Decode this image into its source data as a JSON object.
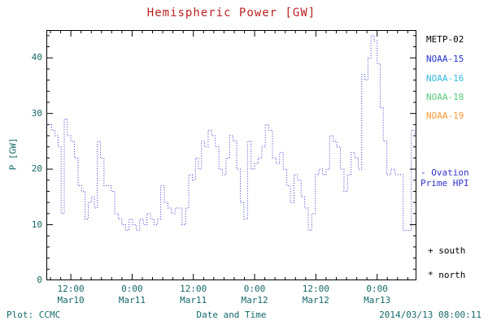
{
  "colors": {
    "title": "#bb2222",
    "axis_text": "#156868",
    "axis_line": "#000000",
    "hpi_line": "#3333cc",
    "metp02": "#000000",
    "noaa15": "#2233cc",
    "noaa16": "#33bbdd",
    "noaa18": "#55cc77",
    "noaa19": "#ff9933"
  },
  "title": "Hemispheric Power [GW]",
  "ylabel": "P [GW]",
  "xlabel": "Date and Time",
  "footer": {
    "left": "Plot: CCMC",
    "right": "2014/03/13 08:00:11"
  },
  "legend": [
    {
      "label": "METP-02",
      "color": "#000000"
    },
    {
      "label": "NOAA-15",
      "color": "#2233cc"
    },
    {
      "label": "NOAA-16",
      "color": "#33bbdd"
    },
    {
      "label": "NOAA-18",
      "color": "#55cc77"
    },
    {
      "label": "NOAA-19",
      "color": "#ff9933"
    }
  ],
  "annotations": {
    "hpi_line1": "- Ovation",
    "hpi_line2": "Prime HPI",
    "south": "+ south",
    "north": "* north"
  },
  "chart_data": {
    "type": "line",
    "style": "dotted-step",
    "title": "Hemispheric Power [GW]",
    "xlabel": "Date and Time",
    "ylabel": "P [GW]",
    "ylim": [
      0,
      45
    ],
    "xlim_hours_since_mar10_0000": [
      7.2,
      79.7
    ],
    "y_ticks": [
      0,
      10,
      20,
      30,
      40
    ],
    "y_minor_step": 2,
    "x_minor_step_hours": 2,
    "x_ticks": [
      {
        "hour": 12,
        "time": "12:00",
        "date": "Mar10"
      },
      {
        "hour": 24,
        "time": "0:00",
        "date": "Mar11"
      },
      {
        "hour": 36,
        "time": "12:00",
        "date": "Mar11"
      },
      {
        "hour": 48,
        "time": "0:00",
        "date": "Mar12"
      },
      {
        "hour": 60,
        "time": "12:00",
        "date": "Mar12"
      },
      {
        "hour": 72,
        "time": "0:00",
        "date": "Mar13"
      }
    ],
    "series": [
      {
        "name": "Ovation Prime HPI",
        "color": "#3333cc",
        "x_hours": [
          7.5,
          8.2,
          8.9,
          9.5,
          10.1,
          10.7,
          11.3,
          12.0,
          12.7,
          13.4,
          14.1,
          14.8,
          15.4,
          16.0,
          16.6,
          17.2,
          17.8,
          18.5,
          19.2,
          19.9,
          20.6,
          21.3,
          22.0,
          22.7,
          23.4,
          24.1,
          24.8,
          25.5,
          26.2,
          26.9,
          27.6,
          28.3,
          29.0,
          29.6,
          30.3,
          31.0,
          31.7,
          32.4,
          33.1,
          33.8,
          34.5,
          35.1,
          35.8,
          36.4,
          37.0,
          37.6,
          38.2,
          38.9,
          39.6,
          40.3,
          41.0,
          41.7,
          42.4,
          43.1,
          43.8,
          44.5,
          45.2,
          45.9,
          46.6,
          47.3,
          48.0,
          48.7,
          49.4,
          50.1,
          50.8,
          51.5,
          52.2,
          52.9,
          53.6,
          54.3,
          55.0,
          55.7,
          56.4,
          57.1,
          57.8,
          58.5,
          59.2,
          59.9,
          60.6,
          61.3,
          62.0,
          62.7,
          63.4,
          64.1,
          64.8,
          65.5,
          66.2,
          66.9,
          67.6,
          68.3,
          69.0,
          69.6,
          70.2,
          70.8,
          71.4,
          72.0,
          72.6,
          73.2,
          73.9,
          74.7,
          75.5,
          76.3,
          77.1,
          77.9,
          78.7,
          79.4
        ],
        "values": [
          28,
          27,
          26,
          24,
          12,
          29,
          26,
          25,
          22,
          17,
          16,
          11,
          14,
          15,
          13,
          25,
          22,
          17,
          17,
          16,
          12,
          11,
          10,
          9,
          11,
          10,
          9,
          11,
          10,
          12,
          11,
          10,
          11,
          17,
          14,
          13,
          12,
          13,
          13,
          10,
          13,
          19,
          18,
          22,
          20,
          25,
          24,
          27,
          26,
          24,
          20,
          19,
          22,
          26,
          25,
          20,
          14,
          11,
          25,
          20,
          21,
          22,
          24,
          28,
          27,
          22,
          21,
          23,
          20,
          17,
          14,
          19,
          18,
          15,
          13,
          9,
          12,
          19,
          20,
          19,
          20,
          26,
          25,
          24,
          20,
          16,
          19,
          23,
          22,
          20,
          37,
          36,
          40,
          44,
          43,
          39,
          31,
          25,
          19,
          20,
          19,
          19,
          9,
          9,
          27,
          26
        ]
      }
    ]
  }
}
